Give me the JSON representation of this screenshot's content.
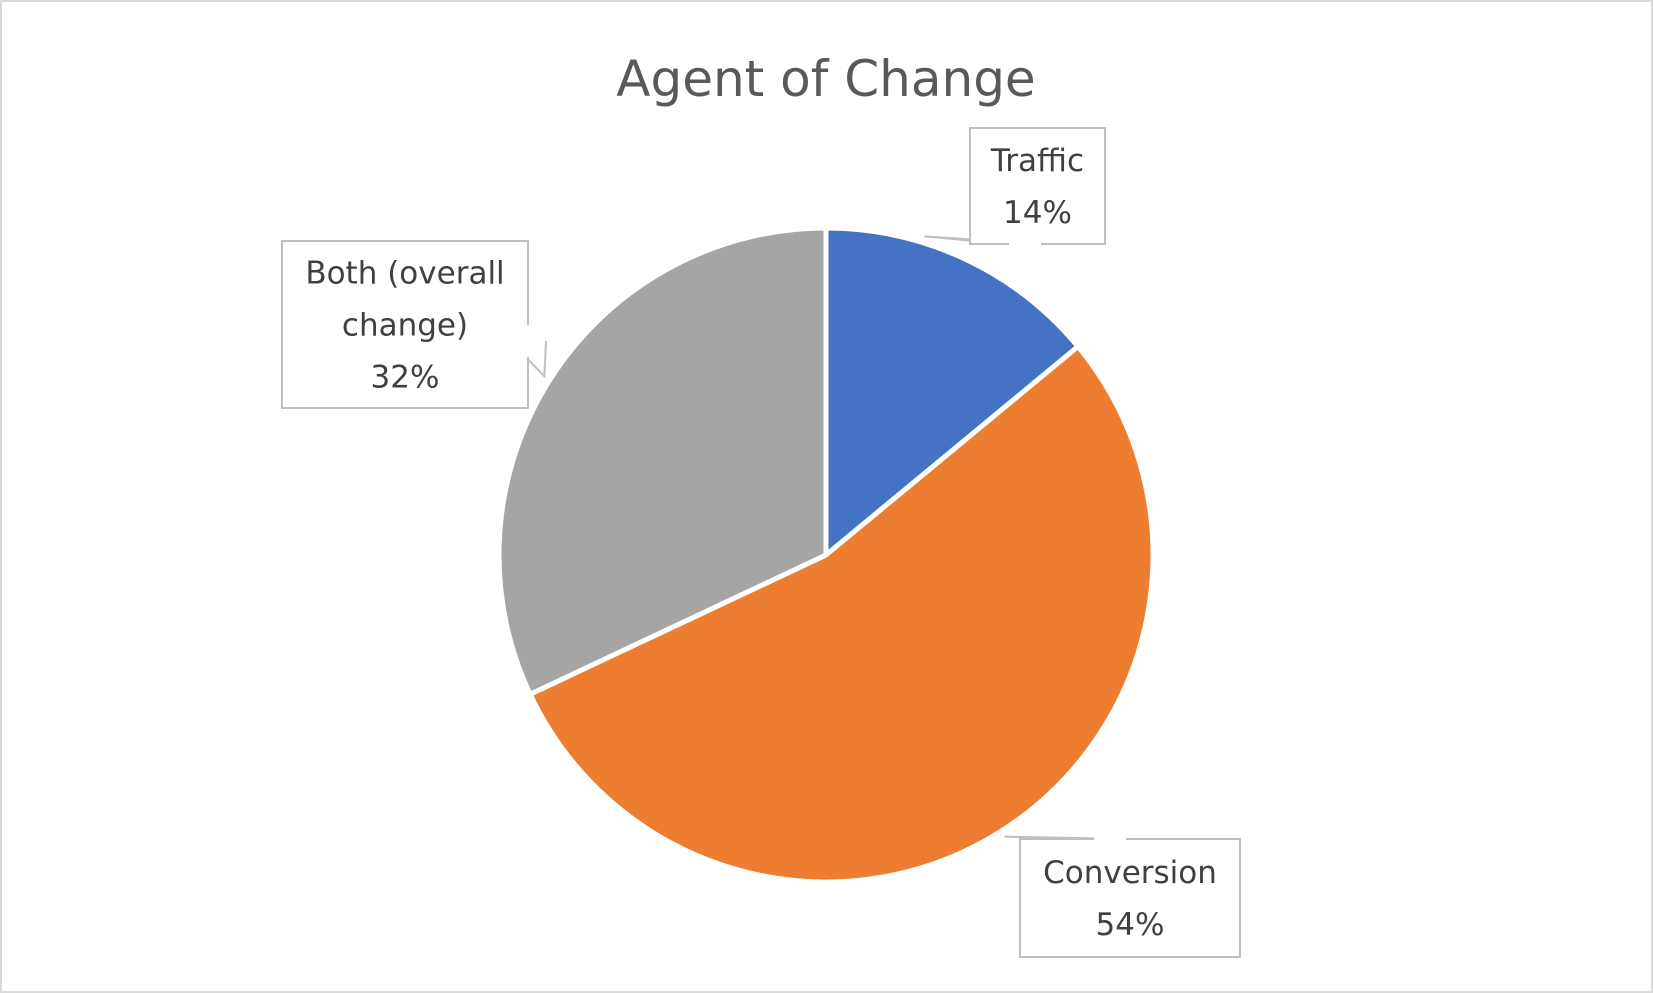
{
  "chart_data": {
    "type": "pie",
    "title": "Agent of Change",
    "categories": [
      "Traffic",
      "Conversion",
      "Both (overall change)"
    ],
    "values": [
      14,
      54,
      32
    ],
    "value_suffix": "%",
    "colors": [
      "#4472C4",
      "#ED7D31",
      "#A5A5A5"
    ],
    "start_angle_deg": 0,
    "direction": "clockwise",
    "legend": "none",
    "data_labels": [
      {
        "lines": [
          "Traffic",
          "14%"
        ]
      },
      {
        "lines": [
          "Conversion",
          "54%"
        ]
      },
      {
        "lines": [
          "Both (overall",
          "change)",
          "32%"
        ]
      }
    ]
  }
}
